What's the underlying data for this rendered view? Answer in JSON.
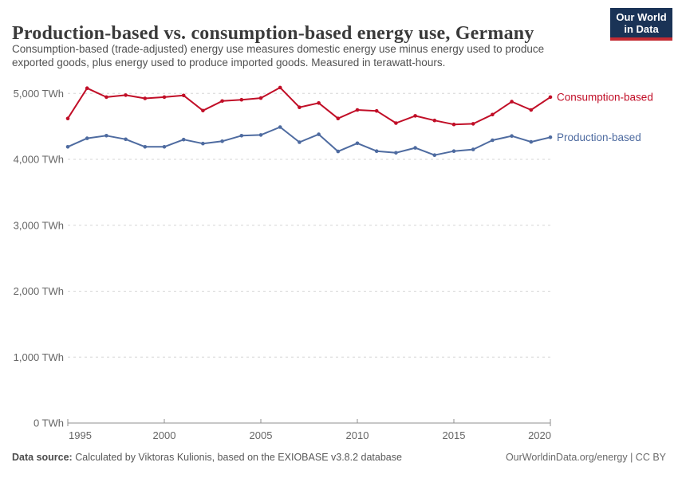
{
  "header": {
    "subtitle_lines": {
      "line1": "Consumption-based (trade-adjusted) energy use measures domestic energy use minus energy used to produce",
      "line2": "exported goods, plus energy used to produce imported goods. Measured in terawatt-hours."
    },
    "logo": {
      "line1": "Our World",
      "line2": "in Data"
    }
  },
  "chart_data": {
    "type": "line",
    "title": "Production-based vs. consumption-based energy use, Germany",
    "subtitle": "Consumption-based (trade-adjusted) energy use measures domestic energy use minus energy used to produce exported goods, plus energy used to produce imported goods. Measured in terawatt-hours.",
    "unit": "TWh",
    "x": [
      1995,
      1996,
      1997,
      1998,
      1999,
      2000,
      2001,
      2002,
      2003,
      2004,
      2005,
      2006,
      2007,
      2008,
      2009,
      2010,
      2011,
      2012,
      2013,
      2014,
      2015,
      2016,
      2017,
      2018,
      2019,
      2020
    ],
    "series": [
      {
        "name": "Consumption-based",
        "color": "#c10e27",
        "values": [
          4620,
          5080,
          4945,
          4975,
          4925,
          4945,
          4970,
          4740,
          4885,
          4905,
          4930,
          5090,
          4790,
          4855,
          4620,
          4750,
          4735,
          4550,
          4660,
          4590,
          4530,
          4540,
          4680,
          4875,
          4750,
          4945
        ]
      },
      {
        "name": "Production-based",
        "color": "#4e6ba0",
        "values": [
          4190,
          4320,
          4360,
          4305,
          4190,
          4190,
          4300,
          4240,
          4275,
          4360,
          4370,
          4490,
          4260,
          4380,
          4120,
          4245,
          4125,
          4100,
          4175,
          4065,
          4125,
          4150,
          4290,
          4355,
          4265,
          4335
        ]
      }
    ],
    "xlim": [
      1995,
      2020
    ],
    "ylim": [
      0,
      5000
    ],
    "xticks": [
      {
        "v": 1995,
        "label": "1995"
      },
      {
        "v": 2000,
        "label": "2000"
      },
      {
        "v": 2005,
        "label": "2005"
      },
      {
        "v": 2010,
        "label": "2010"
      },
      {
        "v": 2015,
        "label": "2015"
      },
      {
        "v": 2020,
        "label": "2020"
      }
    ],
    "yticks": [
      {
        "v": 0,
        "label": "0 TWh"
      },
      {
        "v": 1000,
        "label": "1,000 TWh"
      },
      {
        "v": 2000,
        "label": "2,000 TWh"
      },
      {
        "v": 3000,
        "label": "3,000 TWh"
      },
      {
        "v": 4000,
        "label": "4,000 TWh"
      },
      {
        "v": 5000,
        "label": "5,000 TWh"
      }
    ],
    "grid": "horizontal-dashed",
    "legend_position": "end-of-line-right"
  },
  "footer": {
    "datasource_label": "Data source:",
    "datasource_text": "Calculated by Viktoras Kulionis, based on the EXIOBASE v3.8.2 database",
    "link": "OurWorldinData.org/energy",
    "separator": "|",
    "license": "CC BY"
  },
  "colors": {
    "consumption": "#c10e27",
    "production": "#4e6ba0",
    "logo_navy": "#1a3356",
    "logo_red": "#c32b32",
    "gridline": "#d6d6d6",
    "axis": "#8f8f8f",
    "tick_text": "#666666"
  }
}
